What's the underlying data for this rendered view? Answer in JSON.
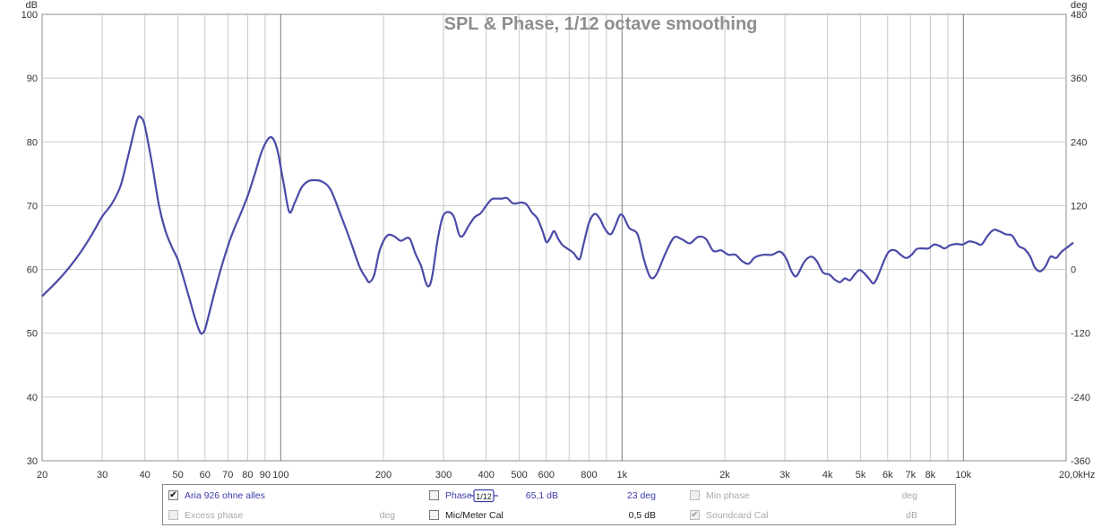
{
  "chart_data": {
    "type": "line",
    "title": "SPL & Phase, 1/12 octave smoothing",
    "y_unit_left": "dB",
    "y_unit_right": "deg",
    "ylim_left": [
      30,
      100
    ],
    "ylim_right": [
      -360,
      480
    ],
    "yticks_left": [
      30,
      40,
      50,
      60,
      70,
      80,
      90,
      100
    ],
    "yticks_right": [
      -360,
      -240,
      -120,
      0,
      120,
      240,
      360,
      480
    ],
    "xlim": [
      20,
      20000
    ],
    "x_scale": "log",
    "xticks": [
      {
        "v": 20,
        "label": "20"
      },
      {
        "v": 30,
        "label": "30"
      },
      {
        "v": 40,
        "label": "40"
      },
      {
        "v": 50,
        "label": "50"
      },
      {
        "v": 60,
        "label": "60"
      },
      {
        "v": 70,
        "label": "70"
      },
      {
        "v": 80,
        "label": "80"
      },
      {
        "v": 90,
        "label": "90"
      },
      {
        "v": 100,
        "label": "100"
      },
      {
        "v": 200,
        "label": "200"
      },
      {
        "v": 300,
        "label": "300"
      },
      {
        "v": 400,
        "label": "400"
      },
      {
        "v": 500,
        "label": "500"
      },
      {
        "v": 600,
        "label": "600"
      },
      {
        "v": 800,
        "label": "800"
      },
      {
        "v": 1000,
        "label": "1k"
      },
      {
        "v": 2000,
        "label": "2k"
      },
      {
        "v": 3000,
        "label": "3k"
      },
      {
        "v": 4000,
        "label": "4k"
      },
      {
        "v": 5000,
        "label": "5k"
      },
      {
        "v": 6000,
        "label": "6k"
      },
      {
        "v": 7000,
        "label": "7k"
      },
      {
        "v": 8000,
        "label": "8k"
      },
      {
        "v": 10000,
        "label": "10k"
      },
      {
        "v": 20000,
        "label": "20,0kHz"
      }
    ],
    "xgrid_minor": [
      20,
      30,
      40,
      50,
      60,
      70,
      80,
      90,
      200,
      300,
      400,
      500,
      600,
      700,
      800,
      900,
      2000,
      3000,
      4000,
      5000,
      6000,
      7000,
      8000,
      9000
    ],
    "xgrid_major": [
      100,
      1000,
      10000
    ],
    "grid": true,
    "series": [
      {
        "name": "Aria 926 ohne alles",
        "color": "#4a4aa8",
        "points": [
          [
            20,
            55.8
          ],
          [
            22,
            58.0
          ],
          [
            24,
            60.3
          ],
          [
            26,
            62.8
          ],
          [
            28,
            65.5
          ],
          [
            30,
            68.3
          ],
          [
            32,
            70.3
          ],
          [
            34,
            73.2
          ],
          [
            36,
            78.5
          ],
          [
            38,
            83.5
          ],
          [
            39,
            83.8
          ],
          [
            40,
            82.5
          ],
          [
            42,
            76.5
          ],
          [
            44,
            70.0
          ],
          [
            46,
            66.0
          ],
          [
            48,
            63.5
          ],
          [
            50,
            61.5
          ],
          [
            52,
            58.5
          ],
          [
            54,
            55.5
          ],
          [
            56,
            52.5
          ],
          [
            58,
            50.2
          ],
          [
            59,
            50.0
          ],
          [
            60,
            50.6
          ],
          [
            62,
            53.5
          ],
          [
            65,
            57.8
          ],
          [
            68,
            61.5
          ],
          [
            72,
            65.5
          ],
          [
            76,
            68.5
          ],
          [
            80,
            71.5
          ],
          [
            84,
            75.0
          ],
          [
            88,
            78.5
          ],
          [
            92,
            80.5
          ],
          [
            95,
            80.5
          ],
          [
            98,
            78.5
          ],
          [
            102,
            73.5
          ],
          [
            106,
            69.0
          ],
          [
            110,
            70.5
          ],
          [
            115,
            72.8
          ],
          [
            120,
            73.8
          ],
          [
            125,
            74.0
          ],
          [
            132,
            73.8
          ],
          [
            140,
            72.5
          ],
          [
            150,
            68.5
          ],
          [
            160,
            64.5
          ],
          [
            170,
            60.5
          ],
          [
            178,
            58.6
          ],
          [
            182,
            58.0
          ],
          [
            188,
            59.2
          ],
          [
            195,
            63.0
          ],
          [
            205,
            65.3
          ],
          [
            215,
            65.2
          ],
          [
            225,
            64.5
          ],
          [
            238,
            64.9
          ],
          [
            248,
            62.5
          ],
          [
            258,
            60.5
          ],
          [
            266,
            58.0
          ],
          [
            272,
            57.4
          ],
          [
            278,
            59.0
          ],
          [
            288,
            64.5
          ],
          [
            298,
            68.2
          ],
          [
            310,
            69.0
          ],
          [
            322,
            68.2
          ],
          [
            333,
            65.5
          ],
          [
            342,
            65.3
          ],
          [
            355,
            66.8
          ],
          [
            370,
            68.2
          ],
          [
            385,
            68.8
          ],
          [
            400,
            70.0
          ],
          [
            415,
            71.0
          ],
          [
            430,
            71.1
          ],
          [
            445,
            71.1
          ],
          [
            460,
            71.2
          ],
          [
            478,
            70.4
          ],
          [
            495,
            70.4
          ],
          [
            508,
            70.5
          ],
          [
            525,
            70.2
          ],
          [
            545,
            68.9
          ],
          [
            565,
            68.0
          ],
          [
            585,
            66.0
          ],
          [
            600,
            64.3
          ],
          [
            615,
            64.9
          ],
          [
            632,
            66.0
          ],
          [
            650,
            64.8
          ],
          [
            670,
            63.8
          ],
          [
            695,
            63.2
          ],
          [
            720,
            62.6
          ],
          [
            750,
            61.6
          ],
          [
            770,
            63.8
          ],
          [
            800,
            67.3
          ],
          [
            830,
            68.7
          ],
          [
            860,
            68.0
          ],
          [
            890,
            66.4
          ],
          [
            925,
            65.5
          ],
          [
            955,
            66.8
          ],
          [
            985,
            68.5
          ],
          [
            1010,
            68.3
          ],
          [
            1050,
            66.5
          ],
          [
            1110,
            65.5
          ],
          [
            1160,
            61.5
          ],
          [
            1210,
            58.8
          ],
          [
            1260,
            59.2
          ],
          [
            1340,
            62.5
          ],
          [
            1420,
            65.0
          ],
          [
            1500,
            64.7
          ],
          [
            1580,
            64.1
          ],
          [
            1670,
            65.1
          ],
          [
            1760,
            64.8
          ],
          [
            1850,
            62.9
          ],
          [
            1950,
            63.0
          ],
          [
            2050,
            62.3
          ],
          [
            2150,
            62.3
          ],
          [
            2250,
            61.3
          ],
          [
            2350,
            60.9
          ],
          [
            2450,
            61.9
          ],
          [
            2600,
            62.3
          ],
          [
            2750,
            62.3
          ],
          [
            2900,
            62.8
          ],
          [
            3020,
            61.8
          ],
          [
            3150,
            59.5
          ],
          [
            3250,
            59.0
          ],
          [
            3420,
            61.2
          ],
          [
            3580,
            62.0
          ],
          [
            3720,
            61.3
          ],
          [
            3880,
            59.5
          ],
          [
            4050,
            59.2
          ],
          [
            4200,
            58.4
          ],
          [
            4350,
            58.0
          ],
          [
            4500,
            58.6
          ],
          [
            4650,
            58.3
          ],
          [
            4800,
            59.2
          ],
          [
            4950,
            59.9
          ],
          [
            5100,
            59.5
          ],
          [
            5300,
            58.5
          ],
          [
            5450,
            57.8
          ],
          [
            5600,
            58.8
          ],
          [
            5850,
            61.3
          ],
          [
            6050,
            62.8
          ],
          [
            6300,
            63.0
          ],
          [
            6550,
            62.3
          ],
          [
            6800,
            61.8
          ],
          [
            7050,
            62.3
          ],
          [
            7300,
            63.2
          ],
          [
            7600,
            63.3
          ],
          [
            7900,
            63.3
          ],
          [
            8200,
            63.9
          ],
          [
            8500,
            63.7
          ],
          [
            8800,
            63.3
          ],
          [
            9150,
            63.8
          ],
          [
            9550,
            64.0
          ],
          [
            9950,
            63.9
          ],
          [
            10400,
            64.4
          ],
          [
            10850,
            64.2
          ],
          [
            11300,
            63.9
          ],
          [
            11750,
            65.2
          ],
          [
            12250,
            66.2
          ],
          [
            12750,
            66.0
          ],
          [
            13300,
            65.5
          ],
          [
            13900,
            65.3
          ],
          [
            14500,
            63.7
          ],
          [
            15100,
            63.2
          ],
          [
            15700,
            62.0
          ],
          [
            16200,
            60.3
          ],
          [
            16800,
            59.7
          ],
          [
            17400,
            60.5
          ],
          [
            18000,
            62.0
          ],
          [
            18700,
            61.8
          ],
          [
            19400,
            62.8
          ],
          [
            20200,
            63.5
          ],
          [
            21000,
            64.2
          ]
        ]
      }
    ]
  },
  "legend": {
    "row1": [
      {
        "label": "Aria 926 ohne alles",
        "checked": true,
        "enabled": true,
        "smoothing": "1/12",
        "value": "65,1 dB"
      },
      {
        "label": "Phase",
        "checked": false,
        "enabled": true,
        "value": "23 deg"
      },
      {
        "label": "Min phase",
        "checked": false,
        "enabled": false,
        "value": "deg"
      }
    ],
    "row2": [
      {
        "label": "Excess phase",
        "checked": false,
        "enabled": false,
        "value": "deg"
      },
      {
        "label": "Mic/Meter Cal",
        "checked": false,
        "enabled": true,
        "value": "0,5 dB"
      },
      {
        "label": "Soundcard Cal",
        "checked": true,
        "enabled": false,
        "value": "dB"
      }
    ]
  }
}
